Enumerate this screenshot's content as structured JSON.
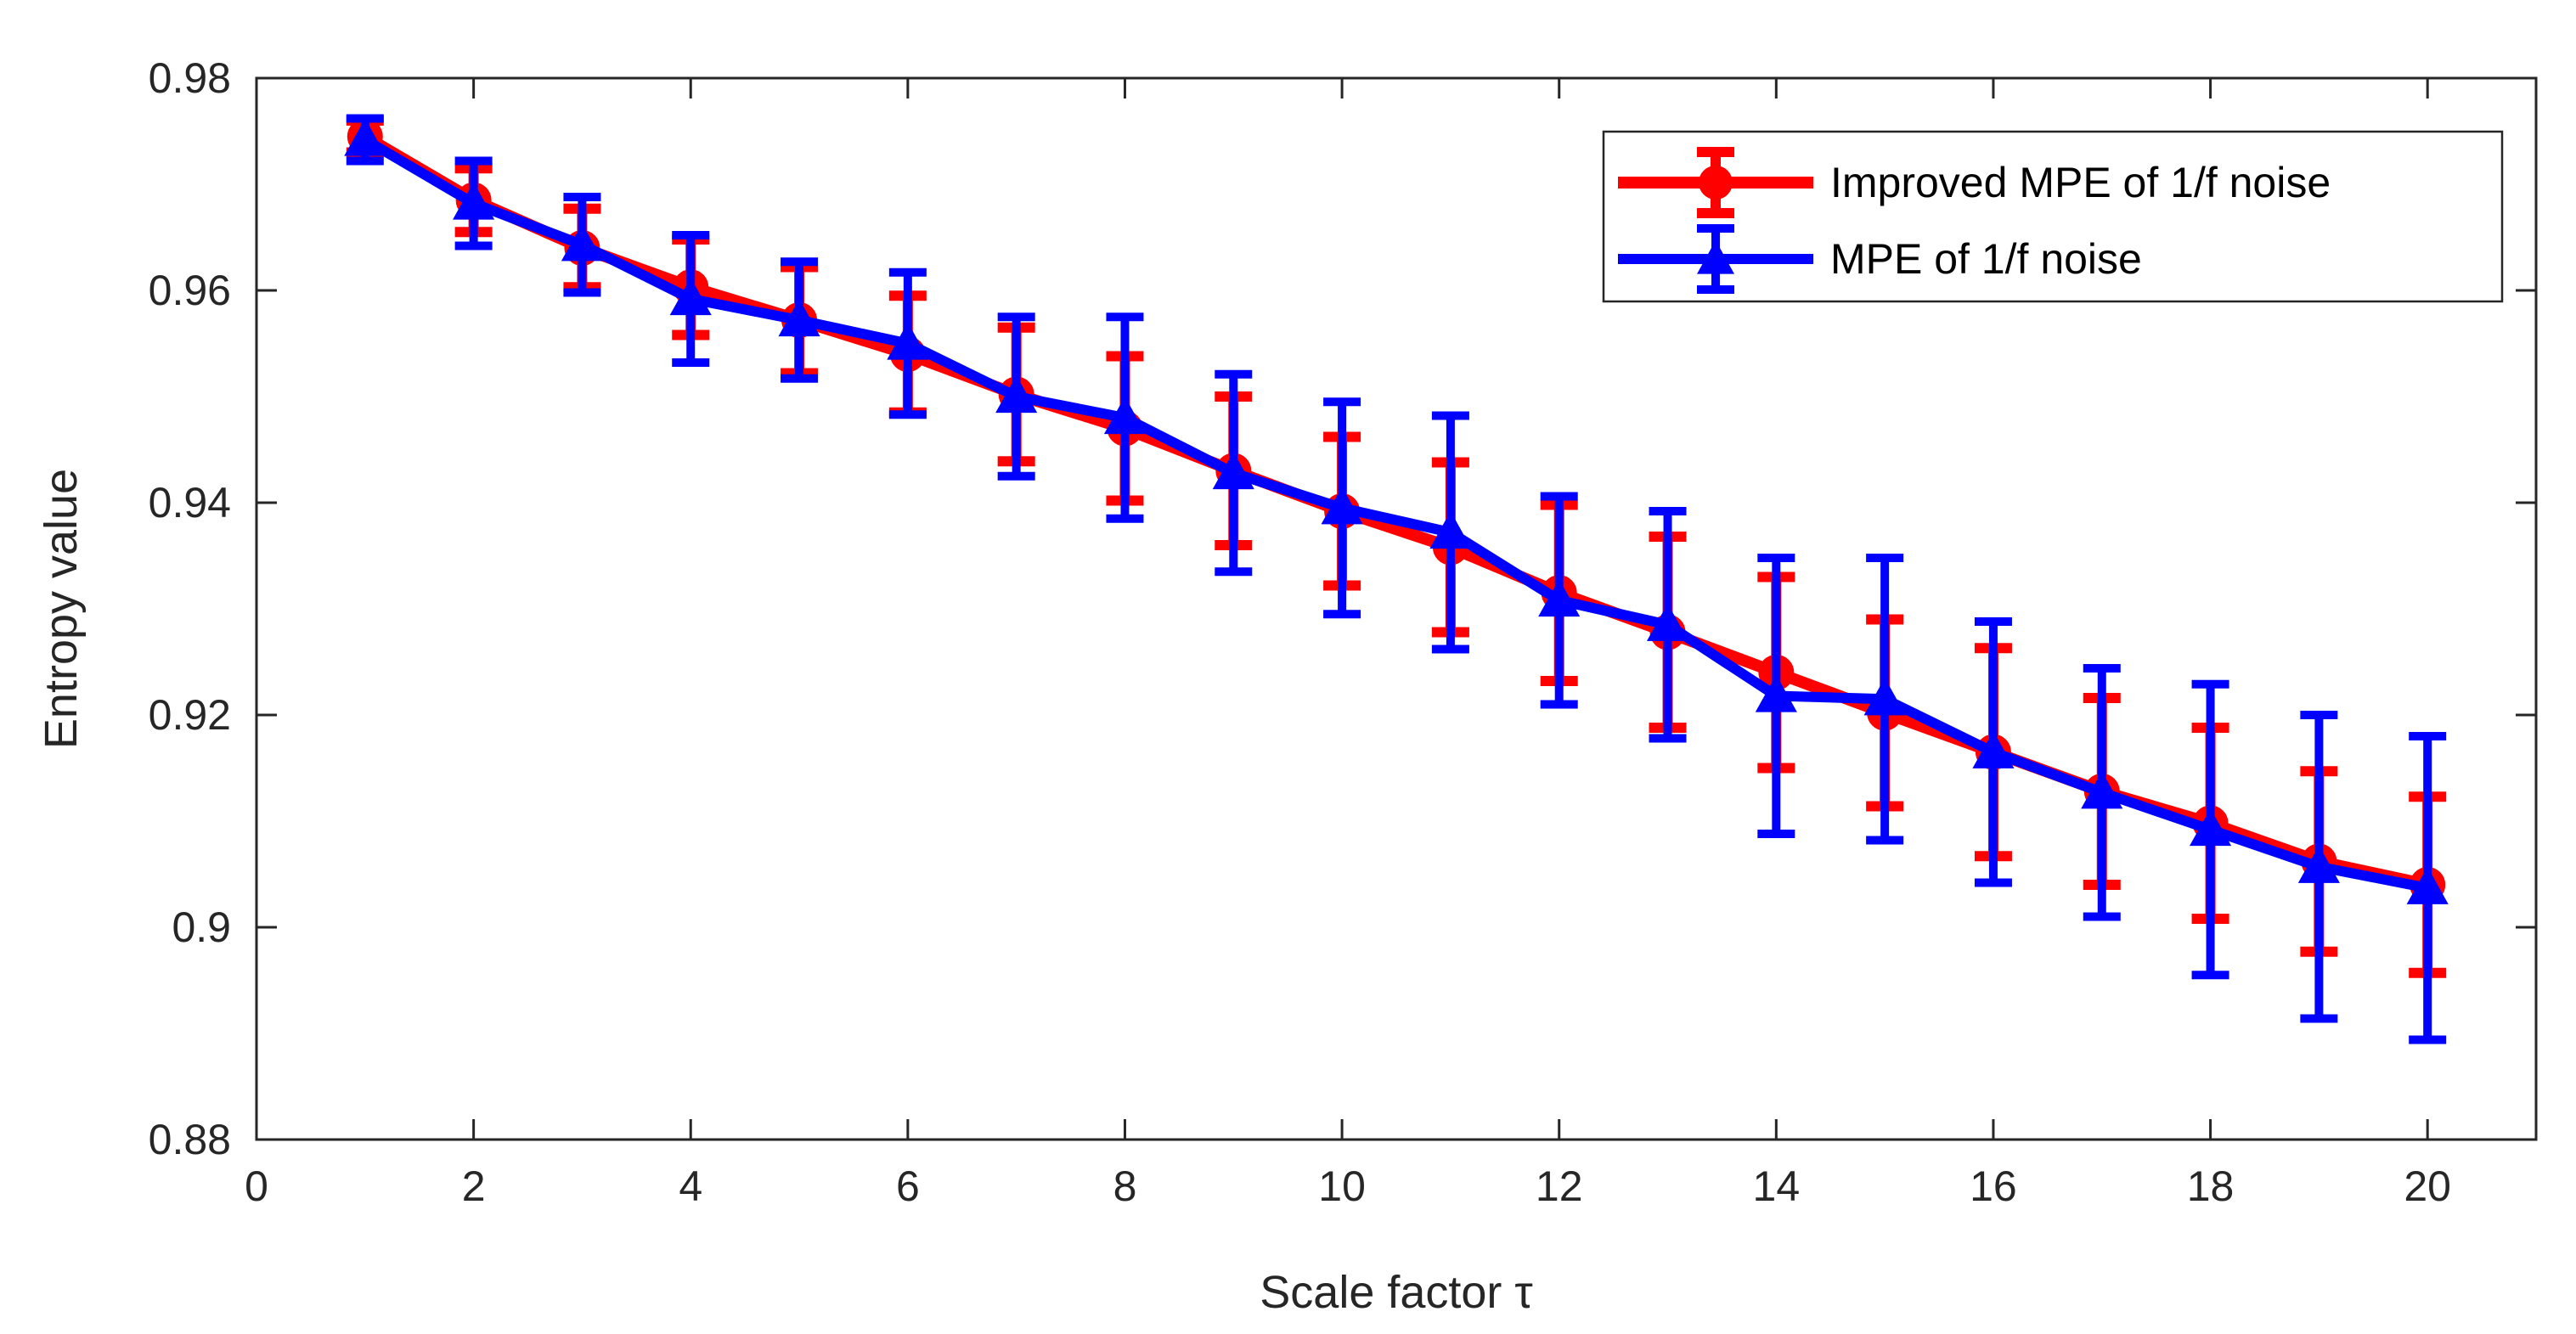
{
  "chart_data": {
    "type": "line",
    "xlabel": "Scale factor τ",
    "ylabel": "Entropy value",
    "xlim": [
      0,
      21
    ],
    "ylim": [
      0.88,
      0.98
    ],
    "xticks": [
      0,
      2,
      4,
      6,
      8,
      10,
      12,
      14,
      16,
      18,
      20
    ],
    "xtick_labels": [
      "0",
      "2",
      "4",
      "6",
      "8",
      "10",
      "12",
      "14",
      "16",
      "18",
      "20"
    ],
    "yticks": [
      0.88,
      0.9,
      0.92,
      0.94,
      0.96,
      0.98
    ],
    "ytick_labels": [
      "0.88",
      "0.9",
      "0.92",
      "0.94",
      "0.96",
      "0.98"
    ],
    "grid": false,
    "legend_position": "top-right",
    "x": [
      1,
      2,
      3,
      4,
      5,
      6,
      7,
      8,
      9,
      10,
      11,
      12,
      13,
      14,
      15,
      16,
      17,
      18,
      19,
      20
    ],
    "series": [
      {
        "name": "Improved MPE of 1/f noise",
        "color": "#ff0000",
        "marker": "circle",
        "values": [
          0.9745,
          0.9685,
          0.964,
          0.9603,
          0.9572,
          0.954,
          0.9502,
          0.947,
          0.943,
          0.9392,
          0.9358,
          0.9315,
          0.9278,
          0.924,
          0.9202,
          0.9165,
          0.9128,
          0.9098,
          0.9062,
          0.904
        ],
        "errors": [
          0.0015,
          0.003,
          0.0037,
          0.0045,
          0.005,
          0.0055,
          0.0063,
          0.0068,
          0.007,
          0.007,
          0.008,
          0.0083,
          0.009,
          0.009,
          0.0088,
          0.0098,
          0.0088,
          0.009,
          0.0085,
          0.0083
        ]
      },
      {
        "name": "MPE of 1/f noise",
        "color": "#0000ff",
        "marker": "triangle",
        "values": [
          0.9742,
          0.9682,
          0.9643,
          0.9592,
          0.9572,
          0.955,
          0.95,
          0.948,
          0.9428,
          0.9395,
          0.9372,
          0.9308,
          0.9285,
          0.9218,
          0.9215,
          0.9165,
          0.9127,
          0.9092,
          0.9057,
          0.9037
        ],
        "errors": [
          0.002,
          0.004,
          0.0045,
          0.006,
          0.0055,
          0.0067,
          0.0075,
          0.0095,
          0.0093,
          0.01,
          0.011,
          0.0098,
          0.0107,
          0.013,
          0.0133,
          0.0123,
          0.0117,
          0.0137,
          0.0143,
          0.0143
        ]
      }
    ]
  }
}
